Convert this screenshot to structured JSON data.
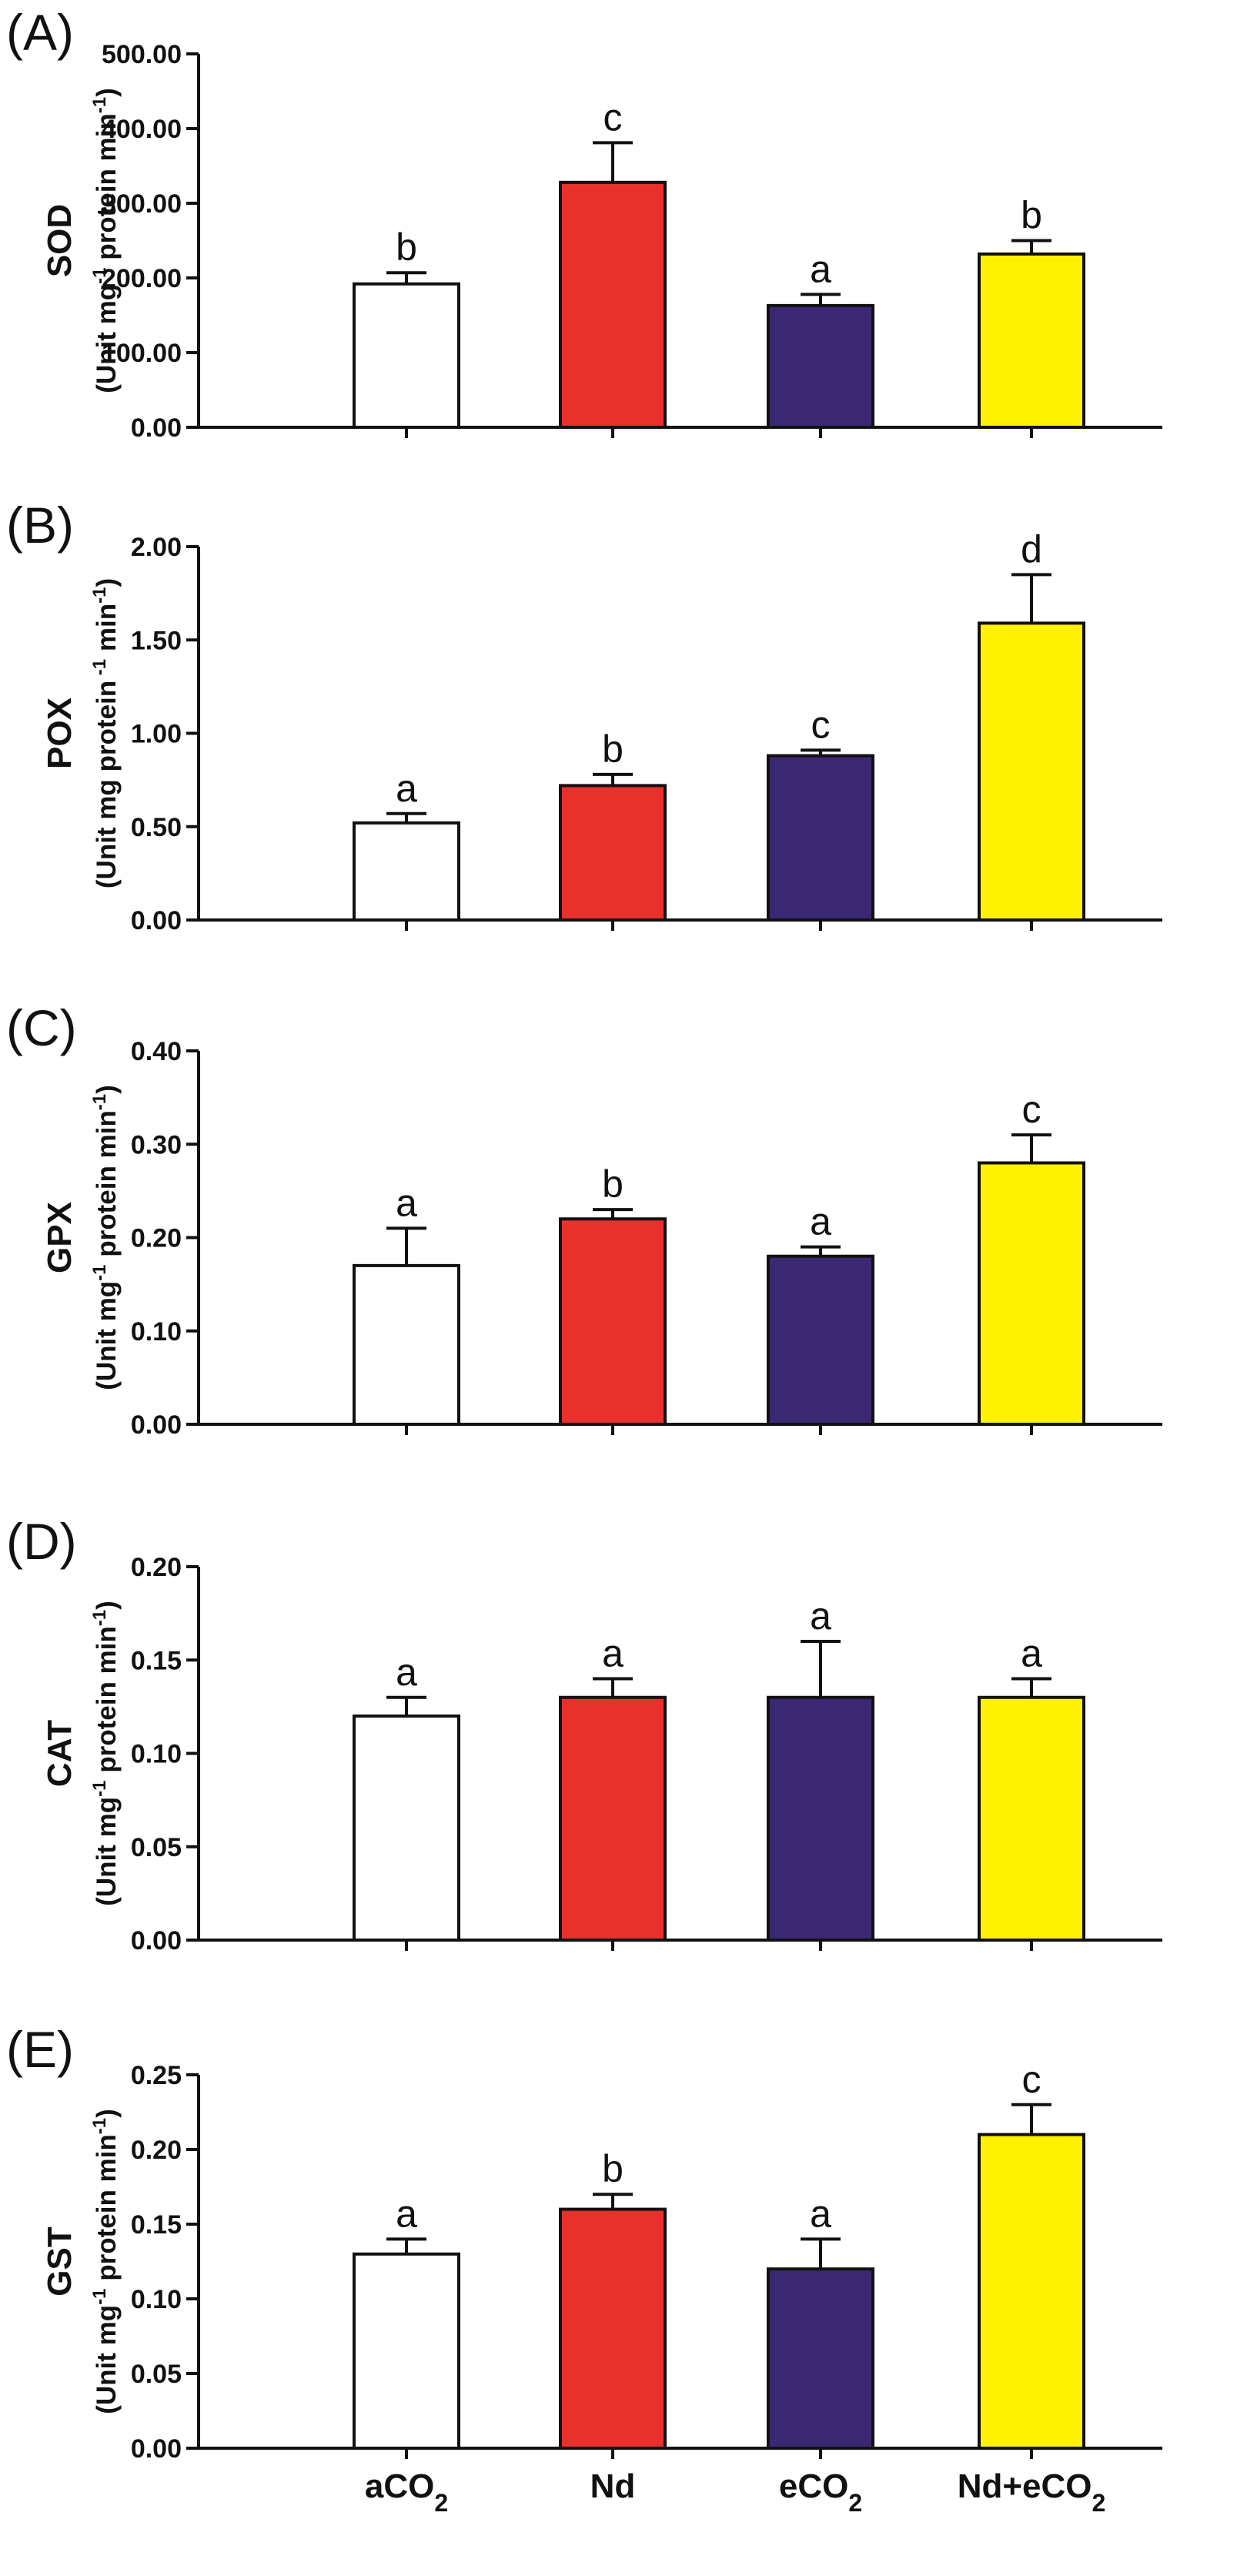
{
  "chart_data": [
    {
      "type": "bar",
      "panel": "(A)",
      "ylabel": "SOD",
      "yunit": [
        "(Unit mg",
        "-1",
        " protein min",
        "-1",
        ")"
      ],
      "categories": [
        "aCO2",
        "Nd",
        "eCO2",
        "Nd+eCO2"
      ],
      "values": [
        192,
        328,
        163,
        232
      ],
      "errors": [
        15,
        53,
        15,
        18
      ],
      "letters": [
        "b",
        "c",
        "a",
        "b"
      ],
      "ylim": [
        0,
        500
      ],
      "yticks": [
        0,
        100,
        200,
        300,
        400,
        500
      ],
      "ytick_labels": [
        "0.00",
        "100.00",
        "200.00",
        "300.00",
        "400.00",
        "500.00"
      ]
    },
    {
      "type": "bar",
      "panel": "(B)",
      "ylabel": "POX",
      "yunit": [
        "(Unit mg protein",
        " -1",
        " min",
        "-1",
        ")"
      ],
      "categories": [
        "aCO2",
        "Nd",
        "eCO2",
        "Nd+eCO2"
      ],
      "values": [
        0.52,
        0.72,
        0.88,
        1.59
      ],
      "errors": [
        0.05,
        0.06,
        0.03,
        0.26
      ],
      "letters": [
        "a",
        "b",
        "c",
        "d"
      ],
      "ylim": [
        0,
        2
      ],
      "yticks": [
        0,
        0.5,
        1,
        1.5,
        2
      ],
      "ytick_labels": [
        "0.00",
        "0.50",
        "1.00",
        "1.50",
        "2.00"
      ]
    },
    {
      "type": "bar",
      "panel": "(C)",
      "ylabel": "GPX",
      "yunit": [
        "(Unit mg",
        "-1",
        " protein min",
        "-1",
        ")"
      ],
      "categories": [
        "aCO2",
        "Nd",
        "eCO2",
        "Nd+eCO2"
      ],
      "values": [
        0.17,
        0.22,
        0.18,
        0.28
      ],
      "errors": [
        0.04,
        0.01,
        0.01,
        0.03
      ],
      "letters": [
        "a",
        "b",
        "a",
        "c"
      ],
      "ylim": [
        0,
        0.4
      ],
      "yticks": [
        0,
        0.1,
        0.2,
        0.3,
        0.4
      ],
      "ytick_labels": [
        "0.00",
        "0.10",
        "0.20",
        "0.30",
        "0.40"
      ]
    },
    {
      "type": "bar",
      "panel": "(D)",
      "ylabel": "CAT",
      "yunit": [
        "(Unit mg",
        "-1",
        " protein min",
        "-1",
        ")"
      ],
      "categories": [
        "aCO2",
        "Nd",
        "eCO2",
        "Nd+eCO2"
      ],
      "values": [
        0.12,
        0.13,
        0.13,
        0.13
      ],
      "errors": [
        0.01,
        0.01,
        0.03,
        0.01
      ],
      "letters": [
        "a",
        "a",
        "a",
        "a"
      ],
      "ylim": [
        0,
        0.2
      ],
      "yticks": [
        0,
        0.05,
        0.1,
        0.15,
        0.2
      ],
      "ytick_labels": [
        "0.00",
        "0.05",
        "0.10",
        "0.15",
        "0.20"
      ]
    },
    {
      "type": "bar",
      "panel": "(E)",
      "ylabel": "GST",
      "yunit": [
        "(Unit mg",
        "-1",
        " protein min",
        "-1",
        ")"
      ],
      "categories": [
        "aCO2",
        "Nd",
        "eCO2",
        "Nd+eCO2"
      ],
      "values": [
        0.13,
        0.16,
        0.12,
        0.21
      ],
      "errors": [
        0.01,
        0.01,
        0.02,
        0.02
      ],
      "letters": [
        "a",
        "b",
        "a",
        "c"
      ],
      "ylim": [
        0,
        0.25
      ],
      "yticks": [
        0,
        0.05,
        0.1,
        0.15,
        0.2,
        0.25
      ],
      "ytick_labels": [
        "0.00",
        "0.05",
        "0.10",
        "0.15",
        "0.20",
        "0.25"
      ]
    }
  ],
  "x_labels": [
    {
      "base": "aCO",
      "sub": "2"
    },
    {
      "base": "Nd",
      "sub": ""
    },
    {
      "base": "eCO",
      "sub": "2"
    },
    {
      "base": "Nd+eCO",
      "sub": "2"
    }
  ],
  "colors": {
    "bars": [
      "#ffffff",
      "#e8312d",
      "#3b2873",
      "#fff200"
    ],
    "stroke": "#111111"
  }
}
